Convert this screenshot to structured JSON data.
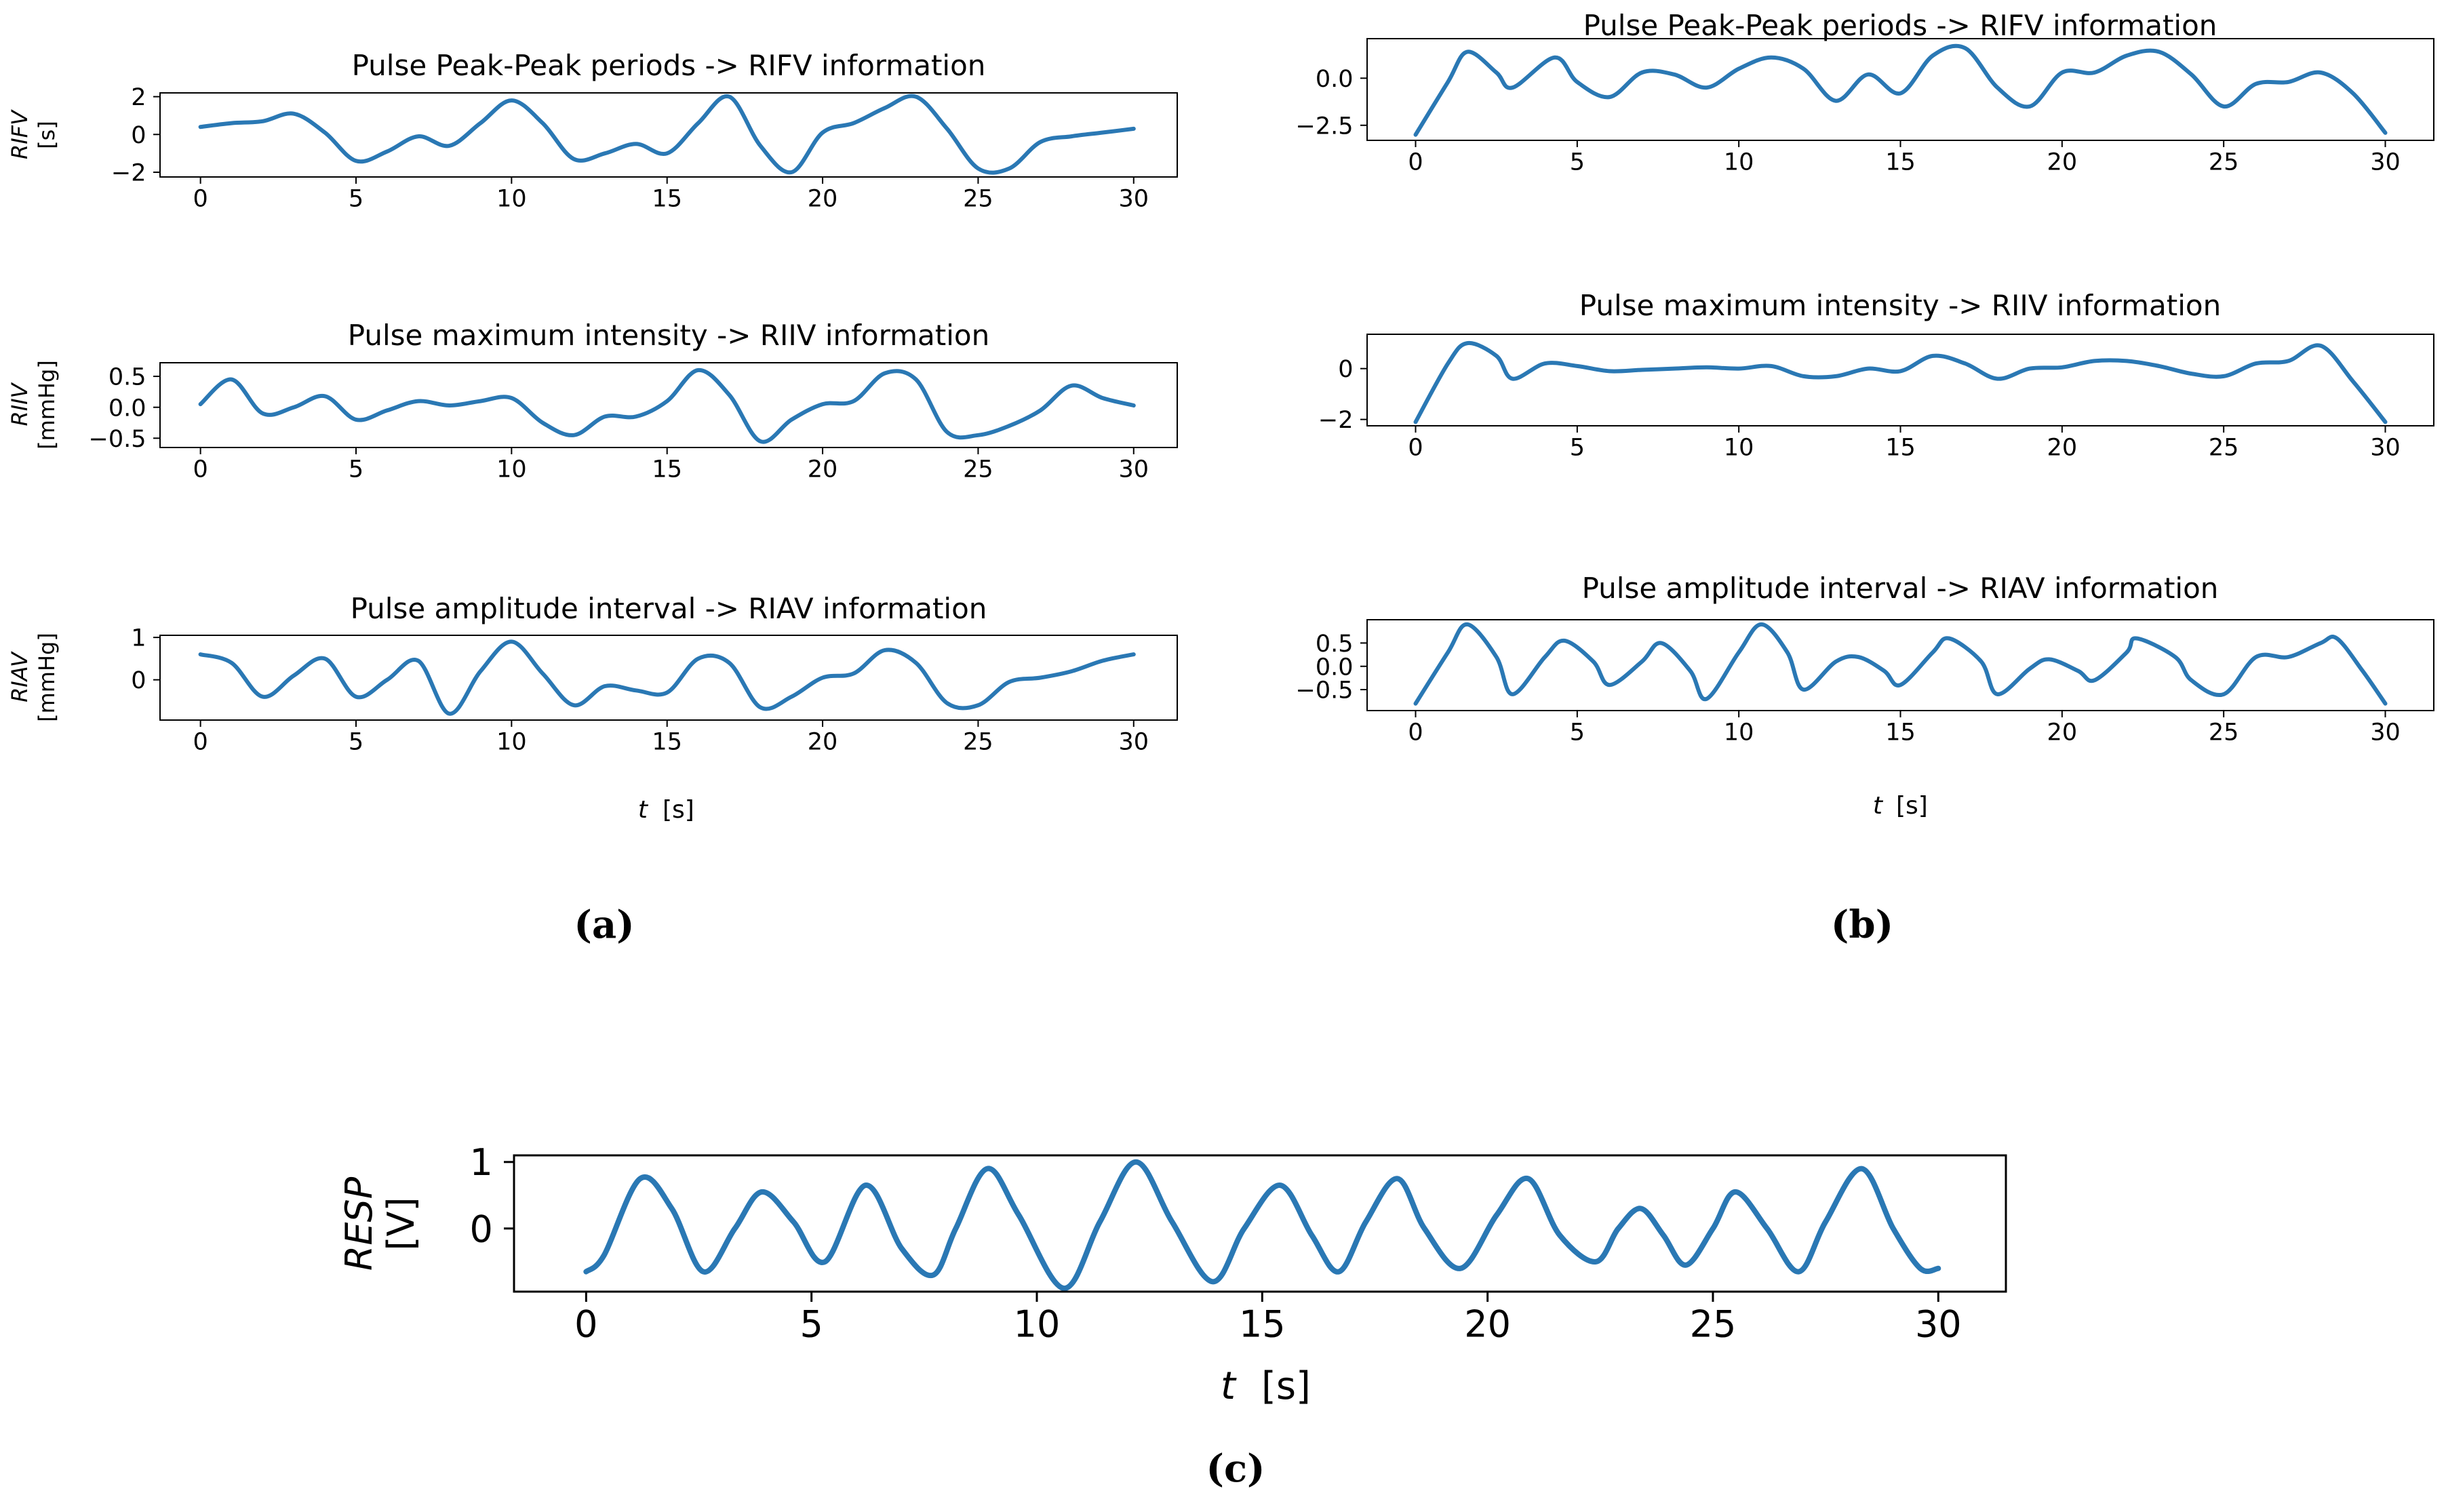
{
  "figure": {
    "captions": {
      "a": "(a)",
      "b": "(b)",
      "c": "(c)"
    },
    "colors": {
      "line": "#2a78b4",
      "axis": "#000000"
    }
  },
  "chart_data": [
    {
      "id": "a1",
      "type": "line",
      "title": "Pulse Peak-Peak periods -> RIFV information",
      "ylabel_var": "RIFV",
      "ylabel_unit": "[s]",
      "xlabel_var": "",
      "xlabel_unit": "",
      "xlim": [
        -1.3,
        31.4
      ],
      "ylim": [
        -2.25,
        2.2
      ],
      "xticks": [
        0,
        5,
        10,
        15,
        20,
        25,
        30
      ],
      "yticks": [
        2,
        0,
        -2
      ],
      "ytick_labels": [
        "2",
        "0",
        "−2"
      ],
      "x": [
        0,
        1,
        2,
        3,
        4,
        5,
        6,
        7,
        8,
        9,
        10,
        11,
        12,
        13,
        14,
        15,
        16,
        17,
        18,
        19,
        20,
        21,
        22,
        23,
        24,
        25,
        26,
        27,
        28,
        29,
        30
      ],
      "y": [
        0.4,
        0.6,
        0.7,
        1.1,
        0.1,
        -1.4,
        -0.9,
        -0.1,
        -0.6,
        0.6,
        1.8,
        0.6,
        -1.3,
        -1.0,
        -0.5,
        -1.0,
        0.6,
        2.0,
        -0.6,
        -2.0,
        0.1,
        0.6,
        1.4,
        2.0,
        0.3,
        -1.8,
        -1.8,
        -0.4,
        -0.1,
        0.1,
        0.3
      ]
    },
    {
      "id": "a2",
      "type": "line",
      "title": "Pulse maximum intensity -> RIIV information",
      "ylabel_var": "RIIV",
      "ylabel_unit": "[mmHg]",
      "xlabel_var": "",
      "xlabel_unit": "",
      "xlim": [
        -1.3,
        31.4
      ],
      "ylim": [
        -0.65,
        0.72
      ],
      "xticks": [
        0,
        5,
        10,
        15,
        20,
        25,
        30
      ],
      "yticks": [
        0.5,
        0.0,
        -0.5
      ],
      "ytick_labels": [
        "0.5",
        "0.0",
        "−0.5"
      ],
      "x": [
        0,
        1,
        2,
        3,
        4,
        5,
        6,
        7,
        8,
        9,
        10,
        11,
        12,
        13,
        14,
        15,
        16,
        17,
        18,
        19,
        20,
        21,
        22,
        23,
        24,
        25,
        26,
        27,
        28,
        29,
        30
      ],
      "y": [
        0.05,
        0.45,
        -0.1,
        0.0,
        0.18,
        -0.2,
        -0.05,
        0.1,
        0.03,
        0.1,
        0.15,
        -0.25,
        -0.45,
        -0.15,
        -0.15,
        0.1,
        0.6,
        0.2,
        -0.55,
        -0.2,
        0.05,
        0.1,
        0.55,
        0.45,
        -0.4,
        -0.45,
        -0.3,
        -0.05,
        0.35,
        0.15,
        0.03
      ]
    },
    {
      "id": "a3",
      "type": "line",
      "title": "Pulse amplitude interval -> RIAV information",
      "ylabel_var": "RIAV",
      "ylabel_unit": "[mmHg]",
      "xlabel_var": "t",
      "xlabel_unit": "[s]",
      "xlim": [
        -1.3,
        31.4
      ],
      "ylim": [
        -0.95,
        1.05
      ],
      "xticks": [
        0,
        5,
        10,
        15,
        20,
        25,
        30
      ],
      "yticks": [
        1,
        0
      ],
      "ytick_labels": [
        "1",
        "0"
      ],
      "x": [
        0,
        1,
        2,
        3,
        4,
        5,
        6,
        7,
        8,
        9,
        10,
        11,
        12,
        13,
        14,
        15,
        16,
        17,
        18,
        19,
        20,
        21,
        22,
        23,
        24,
        25,
        26,
        27,
        28,
        29,
        30
      ],
      "y": [
        0.6,
        0.4,
        -0.4,
        0.1,
        0.5,
        -0.4,
        0.0,
        0.45,
        -0.8,
        0.2,
        0.9,
        0.15,
        -0.6,
        -0.15,
        -0.25,
        -0.3,
        0.5,
        0.4,
        -0.65,
        -0.4,
        0.05,
        0.15,
        0.7,
        0.4,
        -0.55,
        -0.6,
        -0.05,
        0.05,
        0.2,
        0.45,
        0.6
      ]
    },
    {
      "id": "b1",
      "type": "line",
      "title": "Pulse Peak-Peak periods -> RIFV information",
      "ylabel_var": "",
      "ylabel_unit": "",
      "xlabel_var": "",
      "xlabel_unit": "",
      "xlim": [
        -1.5,
        31.5
      ],
      "ylim": [
        -3.3,
        2.1
      ],
      "xticks": [
        0,
        5,
        10,
        15,
        20,
        25,
        30
      ],
      "yticks": [
        0.0,
        -2.5
      ],
      "ytick_labels": [
        "0.0",
        "−2.5"
      ],
      "x": [
        0,
        1,
        1.6,
        2.5,
        3,
        4.3,
        5,
        6,
        7,
        8,
        9,
        10,
        11,
        12,
        13,
        14,
        15,
        16,
        17,
        18,
        19,
        20,
        21,
        22,
        23,
        24,
        25,
        26,
        27,
        28,
        29,
        30
      ],
      "y": [
        -3.0,
        -0.2,
        1.4,
        0.3,
        -0.5,
        1.1,
        -0.2,
        -1.0,
        0.3,
        0.2,
        -0.5,
        0.5,
        1.1,
        0.5,
        -1.2,
        0.2,
        -0.8,
        1.2,
        1.6,
        -0.5,
        -1.5,
        0.3,
        0.3,
        1.2,
        1.4,
        0.2,
        -1.5,
        -0.3,
        -0.2,
        0.3,
        -0.8,
        -2.9
      ]
    },
    {
      "id": "b2",
      "type": "line",
      "title": "Pulse maximum intensity -> RIIV information",
      "ylabel_var": "",
      "ylabel_unit": "",
      "xlabel_var": "",
      "xlabel_unit": "",
      "xlim": [
        -1.5,
        31.5
      ],
      "ylim": [
        -2.25,
        1.35
      ],
      "xticks": [
        0,
        5,
        10,
        15,
        20,
        25,
        30
      ],
      "yticks": [
        0,
        -2
      ],
      "ytick_labels": [
        "0",
        "−2"
      ],
      "x": [
        0,
        1,
        1.6,
        2.5,
        3,
        4,
        5,
        6,
        7,
        8,
        9,
        10,
        11,
        12,
        13,
        14,
        15,
        16,
        17,
        18,
        19,
        20,
        21,
        22,
        23,
        24,
        25,
        26,
        27,
        28,
        29,
        30
      ],
      "y": [
        -2.1,
        0.2,
        1.0,
        0.5,
        -0.4,
        0.2,
        0.1,
        -0.1,
        -0.05,
        0.0,
        0.05,
        0.0,
        0.1,
        -0.3,
        -0.3,
        0.0,
        -0.1,
        0.5,
        0.2,
        -0.4,
        0.0,
        0.05,
        0.3,
        0.3,
        0.1,
        -0.2,
        -0.3,
        0.2,
        0.3,
        0.9,
        -0.5,
        -2.1
      ]
    },
    {
      "id": "b3",
      "type": "line",
      "title": "Pulse amplitude interval -> RIAV information",
      "ylabel_var": "",
      "ylabel_unit": "",
      "xlabel_var": "t",
      "xlabel_unit": "[s]",
      "xlim": [
        -1.5,
        31.5
      ],
      "ylim": [
        -0.95,
        1.0
      ],
      "xticks": [
        0,
        5,
        10,
        15,
        20,
        25,
        30
      ],
      "yticks": [
        0.5,
        0.0,
        -0.5
      ],
      "ytick_labels": [
        "0.5",
        "0.0",
        "−0.5"
      ],
      "x": [
        0,
        1,
        1.6,
        2.5,
        3,
        4,
        4.6,
        5.5,
        6,
        7,
        7.6,
        8.5,
        9,
        10,
        10.7,
        11.5,
        12,
        13,
        13.7,
        14.5,
        15,
        16,
        16.5,
        17.5,
        18,
        19,
        19.6,
        20.5,
        21,
        22,
        22.3,
        23.5,
        24,
        25,
        26,
        27,
        28,
        28.5,
        29.3,
        30
      ],
      "y": [
        -0.8,
        0.3,
        0.9,
        0.2,
        -0.6,
        0.2,
        0.55,
        0.1,
        -0.4,
        0.1,
        0.5,
        -0.1,
        -0.7,
        0.3,
        0.9,
        0.3,
        -0.5,
        0.1,
        0.2,
        -0.1,
        -0.4,
        0.3,
        0.6,
        0.1,
        -0.6,
        -0.05,
        0.15,
        -0.1,
        -0.3,
        0.3,
        0.6,
        0.2,
        -0.3,
        -0.6,
        0.2,
        0.2,
        0.5,
        0.6,
        -0.1,
        -0.8
      ]
    },
    {
      "id": "c",
      "type": "line",
      "title": "",
      "ylabel_var": "RESP",
      "ylabel_unit": "[V]",
      "xlabel_var": "t",
      "xlabel_unit": "[s]",
      "xlim": [
        -1.6,
        31.5
      ],
      "ylim": [
        -0.95,
        1.1
      ],
      "xticks": [
        0,
        5,
        10,
        15,
        20,
        25,
        30
      ],
      "yticks": [
        1,
        0
      ],
      "ytick_labels": [
        "1",
        "0"
      ],
      "x": [
        0,
        0.4,
        1.2,
        1.9,
        2.6,
        3.3,
        3.9,
        4.6,
        5.3,
        6.2,
        7.0,
        7.7,
        8.2,
        8.9,
        9.6,
        10.6,
        11.4,
        12.2,
        13.0,
        13.9,
        14.6,
        15.4,
        16.1,
        16.7,
        17.3,
        18.0,
        18.6,
        19.4,
        20.2,
        20.9,
        21.6,
        22.4,
        22.9,
        23.4,
        23.9,
        24.4,
        25.0,
        25.5,
        26.2,
        26.9,
        27.5,
        28.3,
        29.0,
        29.6,
        30.0
      ],
      "y": [
        -0.65,
        -0.4,
        0.75,
        0.3,
        -0.65,
        0.0,
        0.55,
        0.1,
        -0.5,
        0.65,
        -0.3,
        -0.7,
        0.0,
        0.9,
        0.2,
        -0.9,
        0.1,
        1.0,
        0.1,
        -0.8,
        0.0,
        0.65,
        -0.1,
        -0.65,
        0.1,
        0.75,
        0.0,
        -0.6,
        0.2,
        0.75,
        -0.1,
        -0.5,
        0.0,
        0.3,
        -0.1,
        -0.55,
        0.0,
        0.55,
        0.0,
        -0.65,
        0.1,
        0.9,
        0.0,
        -0.6,
        -0.6
      ]
    }
  ]
}
